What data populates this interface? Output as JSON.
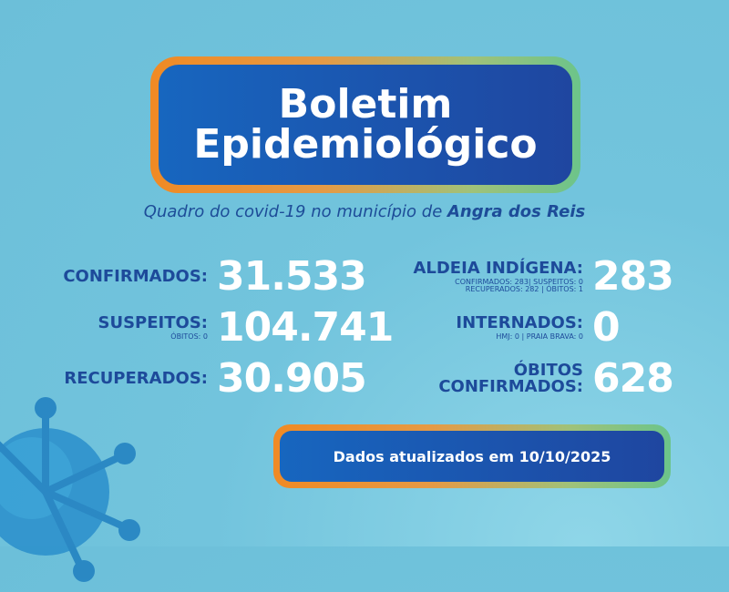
{
  "header": {
    "title_line1": "Boletim",
    "title_line2": "Epidemiológico"
  },
  "subtitle": {
    "prefix": "Quadro do covid-19 no município de ",
    "city": "Angra dos Reis"
  },
  "left_stats": [
    {
      "label": "CONFIRMADOS:",
      "sub": "",
      "value": "31.533"
    },
    {
      "label": "SUSPEITOS:",
      "sub": "ÓBITOS: 0",
      "value": "104.741"
    },
    {
      "label": "RECUPERADOS:",
      "sub": "",
      "value": "30.905"
    }
  ],
  "right_stats": [
    {
      "label": "ALDEIA INDÍGENA:",
      "sub1": "CONFIRMADOS: 283| SUSPEITOS: 0",
      "sub2": "RECUPERADOS: 282 | ÓBITOS: 1",
      "value": "283"
    },
    {
      "label": "INTERNADOS:",
      "sub1": "HMJ: 0 | PRAIA BRAVA: 0",
      "value": "0"
    },
    {
      "label1": "ÓBITOS",
      "label2": "CONFIRMADOS:",
      "value": "628"
    }
  ],
  "footer": {
    "updated": "Dados atualizados em 10/10/2025"
  },
  "colors": {
    "background": "#6cbfd9",
    "label": "#1d4a9a",
    "box": "#1766bf",
    "frame_start": "#f08a24",
    "frame_end": "#6cc48a"
  }
}
